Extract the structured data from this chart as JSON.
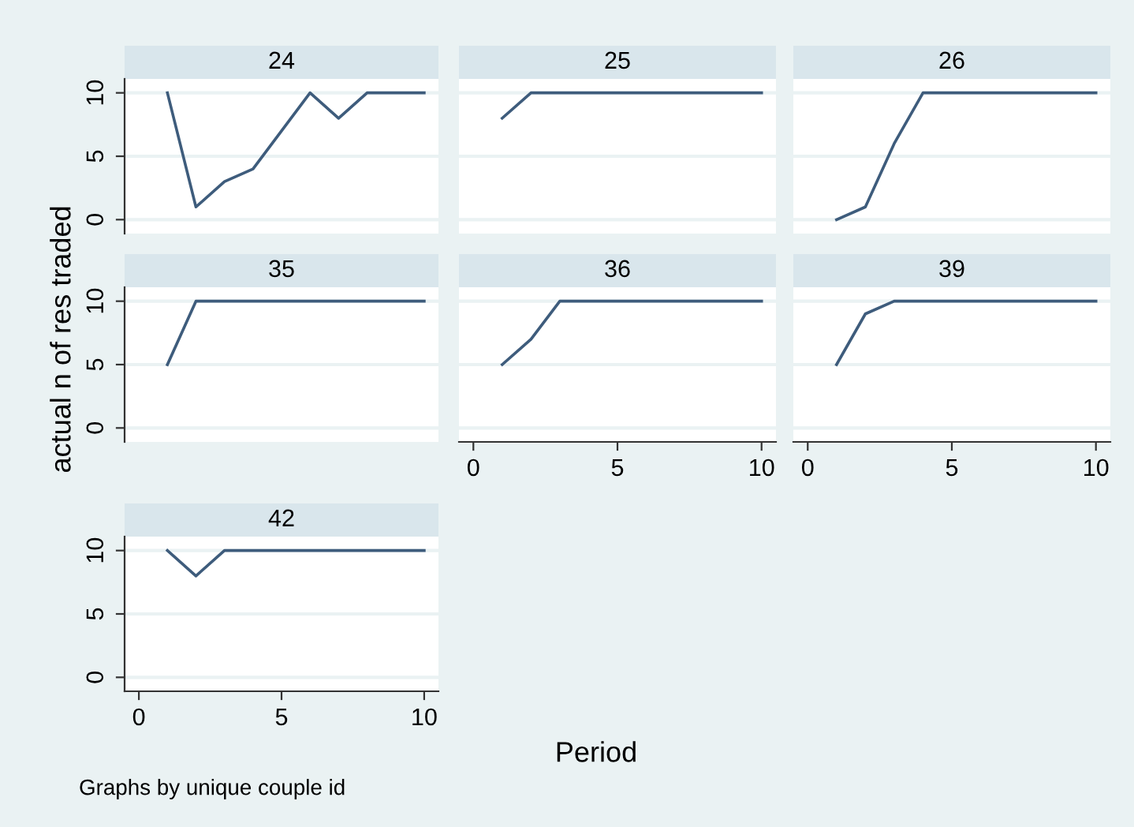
{
  "chart_data": [
    {
      "type": "line",
      "title": "24",
      "x": [
        1,
        2,
        3,
        4,
        5,
        6,
        7,
        8,
        9,
        10
      ],
      "series": [
        {
          "color": "#3e5c7c",
          "values": [
            10,
            1,
            3,
            4,
            7,
            10,
            8,
            10,
            10,
            10
          ]
        }
      ],
      "xlim": [
        -0.5,
        10.5
      ],
      "ylim": [
        -1.1,
        11.1
      ],
      "xticks": [
        0,
        5,
        10
      ],
      "yticks": [
        0,
        5,
        10
      ],
      "grid": "y",
      "tick_labels": "y"
    },
    {
      "type": "line",
      "title": "25",
      "x": [
        1,
        2,
        3,
        4,
        5,
        6,
        7,
        8,
        9,
        10
      ],
      "series": [
        {
          "color": "#3e5c7c",
          "values": [
            8,
            10,
            10,
            10,
            10,
            10,
            10,
            10,
            10,
            10
          ]
        }
      ],
      "xlim": [
        -0.5,
        10.5
      ],
      "ylim": [
        -1.1,
        11.1
      ],
      "xticks": [
        0,
        5,
        10
      ],
      "yticks": [
        0,
        5,
        10
      ],
      "grid": "y",
      "tick_labels": false
    },
    {
      "type": "line",
      "title": "26",
      "x": [
        1,
        2,
        3,
        4,
        5,
        6,
        7,
        8,
        9,
        10
      ],
      "series": [
        {
          "color": "#3e5c7c",
          "values": [
            0,
            1,
            6,
            10,
            10,
            10,
            10,
            10,
            10,
            10
          ]
        }
      ],
      "xlim": [
        -0.5,
        10.5
      ],
      "ylim": [
        -1.1,
        11.1
      ],
      "xticks": [
        0,
        5,
        10
      ],
      "yticks": [
        0,
        5,
        10
      ],
      "grid": "y",
      "tick_labels": false
    },
    {
      "type": "line",
      "title": "35",
      "ylabel": "actual n of res traded",
      "x": [
        1,
        2,
        3,
        4,
        5,
        6,
        7,
        8,
        9,
        10
      ],
      "series": [
        {
          "color": "#3e5c7c",
          "values": [
            5,
            10,
            10,
            10,
            10,
            10,
            10,
            10,
            10,
            10
          ]
        }
      ],
      "xlim": [
        -0.5,
        10.5
      ],
      "ylim": [
        -1.1,
        11.1
      ],
      "xticks": [
        0,
        5,
        10
      ],
      "yticks": [
        0,
        5,
        10
      ],
      "grid": "y",
      "tick_labels": "y"
    },
    {
      "type": "line",
      "title": "36",
      "x": [
        1,
        2,
        3,
        4,
        5,
        6,
        7,
        8,
        9,
        10
      ],
      "series": [
        {
          "color": "#3e5c7c",
          "values": [
            5,
            7,
            10,
            10,
            10,
            10,
            10,
            10,
            10,
            10
          ]
        }
      ],
      "xlim": [
        -0.5,
        10.5
      ],
      "ylim": [
        -1.1,
        11.1
      ],
      "xticks": [
        0,
        5,
        10
      ],
      "yticks": [
        0,
        5,
        10
      ],
      "grid": "y",
      "tick_labels": "x"
    },
    {
      "type": "line",
      "title": "39",
      "x": [
        1,
        2,
        3,
        4,
        5,
        6,
        7,
        8,
        9,
        10
      ],
      "series": [
        {
          "color": "#3e5c7c",
          "values": [
            5,
            9,
            10,
            10,
            10,
            10,
            10,
            10,
            10,
            10
          ]
        }
      ],
      "xlim": [
        -0.5,
        10.5
      ],
      "ylim": [
        -1.1,
        11.1
      ],
      "xticks": [
        0,
        5,
        10
      ],
      "yticks": [
        0,
        5,
        10
      ],
      "grid": "y",
      "tick_labels": "x"
    },
    {
      "type": "line",
      "title": "42",
      "xlabel": "Period",
      "annotations": [
        "Graphs by unique couple id"
      ],
      "x": [
        1,
        2,
        3,
        4,
        5,
        6,
        7,
        8,
        9,
        10
      ],
      "series": [
        {
          "color": "#3e5c7c",
          "values": [
            10,
            8,
            10,
            10,
            10,
            10,
            10,
            10,
            10,
            10
          ]
        }
      ],
      "xlim": [
        -0.5,
        10.5
      ],
      "ylim": [
        -1.1,
        11.1
      ],
      "xticks": [
        0,
        5,
        10
      ],
      "yticks": [
        0,
        5,
        10
      ],
      "grid": "y"
    }
  ]
}
